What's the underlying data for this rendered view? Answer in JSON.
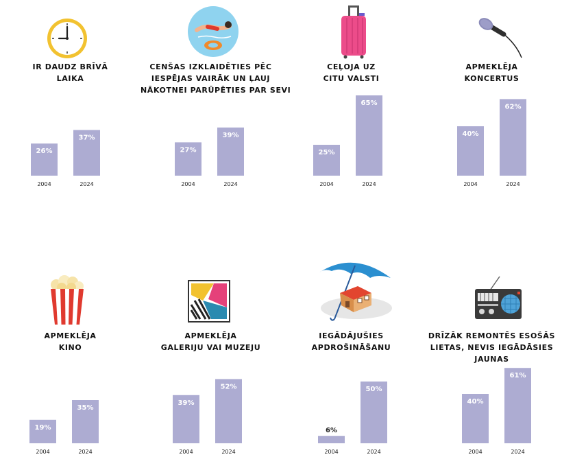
{
  "chart_data": [
    {
      "type": "bar",
      "title_lines": [
        "IR DAUDZ BRĪVĀ",
        "LAIKA"
      ],
      "categories": [
        "2004",
        "2024"
      ],
      "values": [
        26,
        37
      ],
      "value_labels": [
        "26%",
        "37%"
      ],
      "ylim": [
        0,
        100
      ],
      "icon": "clock-icon"
    },
    {
      "type": "bar",
      "title_lines": [
        "CENŠAS IZKLAIDĒTIES PĒC",
        "IESPĒJAS VAIRĀK UN ĻAUJ",
        "NĀKOTNEI PARŪPĒTIES PAR SEVI"
      ],
      "categories": [
        "2004",
        "2024"
      ],
      "values": [
        27,
        39
      ],
      "value_labels": [
        "27%",
        "39%"
      ],
      "ylim": [
        0,
        100
      ],
      "icon": "swimmer-icon"
    },
    {
      "type": "bar",
      "title_lines": [
        "CEĻOJA UZ",
        "CITU VALSTI"
      ],
      "categories": [
        "2004",
        "2024"
      ],
      "values": [
        25,
        65
      ],
      "value_labels": [
        "25%",
        "65%"
      ],
      "ylim": [
        0,
        100
      ],
      "icon": "suitcase-icon"
    },
    {
      "type": "bar",
      "title_lines": [
        "APMEKLĒJA",
        "KONCERTUS"
      ],
      "categories": [
        "2004",
        "2024"
      ],
      "values": [
        40,
        62
      ],
      "value_labels": [
        "40%",
        "62%"
      ],
      "ylim": [
        0,
        100
      ],
      "icon": "microphone-icon"
    },
    {
      "type": "bar",
      "title_lines": [
        "APMEKLĒJA",
        "KINO"
      ],
      "categories": [
        "2004",
        "2024"
      ],
      "values": [
        19,
        35
      ],
      "value_labels": [
        "19%",
        "35%"
      ],
      "ylim": [
        0,
        100
      ],
      "icon": "popcorn-icon"
    },
    {
      "type": "bar",
      "title_lines": [
        "APMEKLĒJA",
        "GALERIJU VAI MUZEJU"
      ],
      "categories": [
        "2004",
        "2024"
      ],
      "values": [
        39,
        52
      ],
      "value_labels": [
        "39%",
        "52%"
      ],
      "ylim": [
        0,
        100
      ],
      "icon": "painting-icon"
    },
    {
      "type": "bar",
      "title_lines": [
        "IEGĀDĀJUŠIES",
        "APDROŠINĀŠANU"
      ],
      "categories": [
        "2004",
        "2024"
      ],
      "values": [
        6,
        50
      ],
      "value_labels": [
        "6%",
        "50%"
      ],
      "ylim": [
        0,
        100
      ],
      "icon": "umbrella-house-icon"
    },
    {
      "type": "bar",
      "title_lines": [
        "DRĪZĀK REMONTĒS ESOŠĀS",
        "LIETAS, NEVIS IEGĀDĀSIES",
        "JAUNAS"
      ],
      "categories": [
        "2004",
        "2024"
      ],
      "values": [
        40,
        61
      ],
      "value_labels": [
        "40%",
        "61%"
      ],
      "ylim": [
        0,
        100
      ],
      "icon": "radio-icon"
    }
  ],
  "colors": {
    "bar": "#adacd2",
    "text": "#111111"
  }
}
